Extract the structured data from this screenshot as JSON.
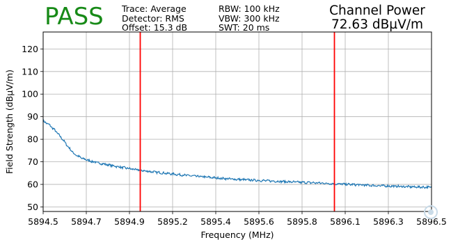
{
  "header": {
    "status": "PASS",
    "status_color": "#178a17",
    "params_col1": [
      "Trace: Average",
      "Detector: RMS",
      "Offset: 15.3 dB"
    ],
    "params_col2": [
      "RBW: 100 kHz",
      "VBW: 300 kHz",
      "SWT: 20 ms"
    ],
    "channel_power_label": "Channel Power",
    "channel_power_value": "72.63 dBµV/m"
  },
  "chart_data": {
    "type": "line",
    "xlabel": "Frequency (MHz)",
    "ylabel": "Field Strength (dBµV/m)",
    "xlim": [
      5894.5,
      5896.5
    ],
    "ylim": [
      48,
      127.5
    ],
    "x_ticks": [
      "5894.5",
      "5894.7",
      "5894.9",
      "5895.2",
      "5895.4",
      "5895.6",
      "5895.8",
      "5896.1",
      "5896.3",
      "5896.5"
    ],
    "y_ticks": [
      50,
      60,
      70,
      80,
      90,
      100,
      110,
      120
    ],
    "grid": true,
    "line_color": "#1f77b4",
    "marker_color": "#ff0000",
    "markers_x": [
      5895.0,
      5896.0
    ],
    "series": [
      {
        "x": [
          5894.5,
          5894.53,
          5894.56,
          5894.6,
          5894.63,
          5894.66,
          5894.7,
          5894.75,
          5894.8,
          5894.85,
          5894.9,
          5895.0,
          5895.1,
          5895.2,
          5895.3,
          5895.4,
          5895.5,
          5895.6,
          5895.7,
          5895.8,
          5895.9,
          5896.0,
          5896.1,
          5896.2,
          5896.3,
          5896.4,
          5896.5
        ],
        "y": [
          88,
          86.5,
          84,
          80,
          76.5,
          73.5,
          71.5,
          70.2,
          69.2,
          68.4,
          67.6,
          66.2,
          65.2,
          64.3,
          63.5,
          62.8,
          62.2,
          61.8,
          61.4,
          61.0,
          60.7,
          60.3,
          59.9,
          59.5,
          59.2,
          58.9,
          58.7
        ]
      }
    ]
  }
}
